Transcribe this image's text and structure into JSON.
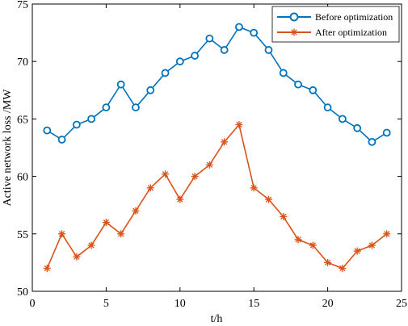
{
  "chart_data": {
    "type": "line",
    "title": "",
    "xlabel": "t/h",
    "ylabel": "Active network loss /MW",
    "xlim": [
      0,
      25
    ],
    "ylim": [
      50,
      75
    ],
    "xticks": [
      0,
      5,
      10,
      15,
      20,
      25
    ],
    "yticks": [
      50,
      55,
      60,
      65,
      70,
      75
    ],
    "grid": false,
    "legend_position": "top-right",
    "x": [
      1,
      2,
      3,
      4,
      5,
      6,
      7,
      8,
      9,
      10,
      11,
      12,
      13,
      14,
      15,
      16,
      17,
      18,
      19,
      20,
      21,
      22,
      23,
      24
    ],
    "series": [
      {
        "name": "Before optimization",
        "color": "#0072BD",
        "marker": "circle",
        "values": [
          64,
          63.2,
          64.5,
          65,
          66,
          68,
          66,
          67.5,
          69,
          70,
          70.5,
          72,
          71,
          73,
          72.5,
          71,
          69,
          68,
          67.5,
          66,
          65,
          64.2,
          63,
          63.8
        ]
      },
      {
        "name": "After optimization",
        "color": "#D95319",
        "marker": "asterisk",
        "values": [
          52,
          55,
          53,
          54,
          56,
          55,
          57,
          59,
          60.2,
          58,
          60,
          61,
          63,
          64.5,
          59,
          58,
          56.5,
          54.5,
          54,
          52.5,
          52,
          53.5,
          54,
          55
        ]
      }
    ]
  }
}
